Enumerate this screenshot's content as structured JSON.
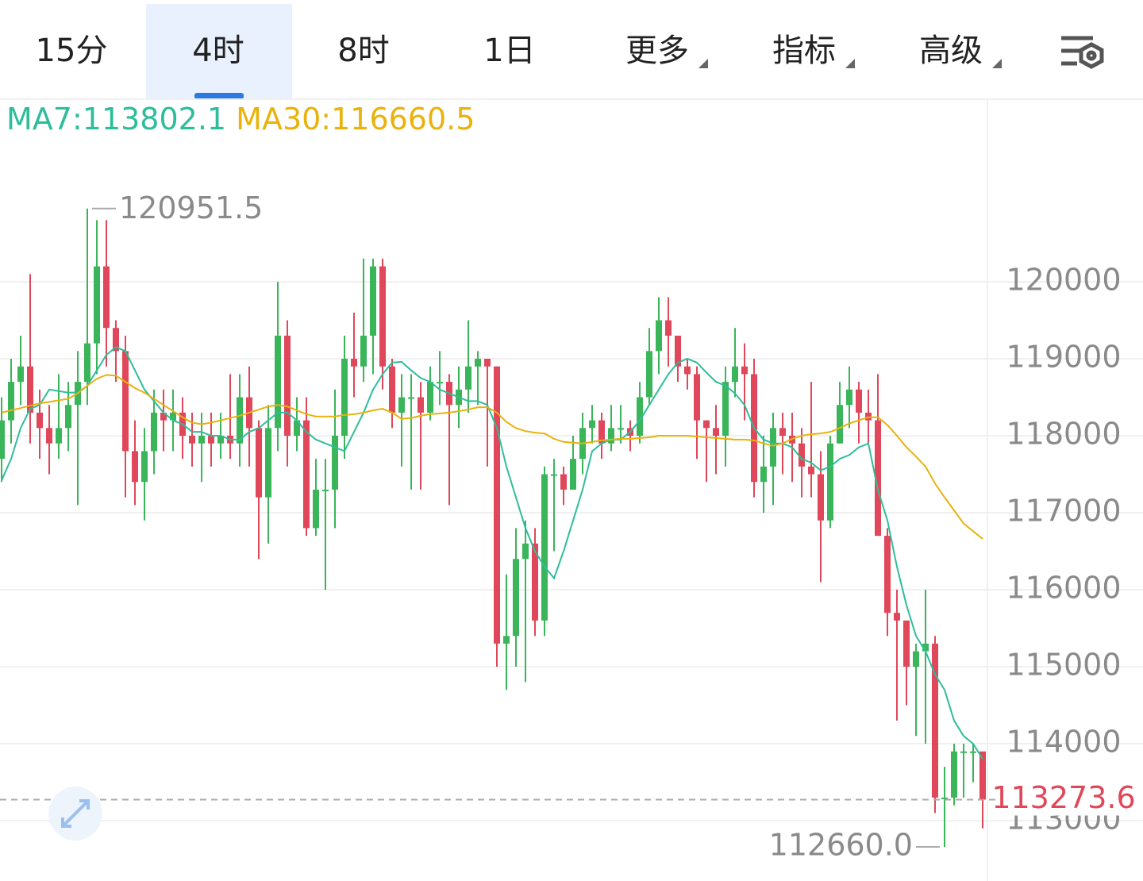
{
  "tabs": [
    "15分",
    "4时",
    "8时",
    "1日",
    "更多",
    "指标",
    "高级"
  ],
  "active_tab": 1,
  "chart_data": {
    "type": "candlestick",
    "up_color": "#3ab55a",
    "down_color": "#e0475a",
    "ylim": [
      112320,
      122371
    ],
    "yticks": [
      113000,
      114000,
      115000,
      116000,
      117000,
      118000,
      119000,
      120000
    ],
    "grid": true,
    "high_label": "120951.5",
    "low_label": "112660.0",
    "last_price": 113273.6,
    "open": [
      117700,
      118200,
      118700,
      118900,
      118300,
      118100,
      117900,
      118100,
      118400,
      118700,
      119200,
      120200,
      119400,
      119100,
      117800,
      117400,
      117800,
      118300,
      118200,
      118300,
      118000,
      117900,
      118000,
      117900,
      118000,
      117900,
      118500,
      118100,
      117200,
      118100,
      119300,
      118000,
      118200,
      116800,
      117300,
      117300,
      118000,
      119000,
      118900,
      119300,
      120200,
      118900,
      118300,
      118500,
      118500,
      118300,
      118700,
      118700,
      118400,
      118600,
      118900,
      119000,
      118900,
      115300,
      115400,
      116400,
      116600,
      115600,
      117500,
      117500,
      117300,
      117700,
      118100,
      118200,
      117900,
      118100,
      118100,
      118000,
      118500,
      119100,
      119500,
      119300,
      118900,
      118800,
      118200,
      118100,
      118000,
      118700,
      118900,
      118800,
      117400,
      117600,
      118100,
      118000,
      117900,
      117600,
      117500,
      116900,
      117900,
      118400,
      118600,
      118300,
      118200,
      116700,
      115700,
      115600,
      115000,
      115200,
      115300,
      113300,
      113300,
      113900,
      113900,
      113900
    ],
    "high": [
      118500,
      119000,
      119300,
      120100,
      118600,
      118400,
      118800,
      118700,
      119100,
      120951.5,
      120800,
      120800,
      119500,
      119300,
      118200,
      118100,
      118600,
      118600,
      118600,
      118500,
      118300,
      118300,
      118300,
      118300,
      118800,
      118800,
      118900,
      118200,
      118400,
      120000,
      119500,
      118500,
      118500,
      117700,
      117700,
      118600,
      119300,
      119600,
      120300,
      120300,
      120300,
      119000,
      118800,
      118800,
      118700,
      118900,
      119100,
      118800,
      118900,
      119500,
      119100,
      119000,
      118900,
      116200,
      116800,
      116900,
      116800,
      117600,
      117700,
      117600,
      118000,
      118300,
      118400,
      118300,
      118400,
      118400,
      118200,
      118700,
      119400,
      119800,
      119800,
      119300,
      119000,
      118900,
      118200,
      118400,
      118900,
      119400,
      119200,
      119000,
      118000,
      118300,
      118300,
      118300,
      118100,
      118700,
      117800,
      118000,
      118700,
      118900,
      118700,
      118600,
      118800,
      116800,
      116000,
      115600,
      115300,
      116000,
      115400,
      113700,
      114000,
      114000,
      114000,
      113800
    ],
    "low": [
      117400,
      117900,
      118400,
      117900,
      117700,
      117500,
      117700,
      117800,
      117100,
      118400,
      118800,
      118900,
      118700,
      117200,
      117100,
      116900,
      117500,
      117800,
      117800,
      117700,
      117600,
      117400,
      117600,
      117700,
      117700,
      117600,
      117600,
      116400,
      116600,
      117800,
      117600,
      117800,
      116700,
      116700,
      116000,
      116800,
      117700,
      118500,
      118700,
      118800,
      118600,
      118100,
      117600,
      117300,
      117300,
      118200,
      118400,
      117100,
      118100,
      118300,
      118400,
      117600,
      115000,
      114700,
      115000,
      114800,
      115400,
      115400,
      116500,
      117100,
      117300,
      117500,
      117900,
      117700,
      117800,
      117900,
      117800,
      117900,
      118400,
      118800,
      118900,
      118700,
      118600,
      117700,
      117400,
      117500,
      117600,
      118500,
      118200,
      117200,
      117000,
      117100,
      117500,
      117400,
      117200,
      117200,
      116100,
      116800,
      117900,
      118100,
      117900,
      117900,
      116700,
      115400,
      114300,
      114500,
      114100,
      114000,
      113100,
      112660.0,
      113200,
      113300,
      113500,
      112900
    ],
    "close": [
      118200,
      118700,
      118900,
      118300,
      118100,
      117900,
      118100,
      118400,
      118700,
      119200,
      120200,
      119400,
      119100,
      117800,
      117400,
      117800,
      118300,
      118200,
      118300,
      118000,
      117900,
      118000,
      117900,
      118000,
      117900,
      118500,
      118100,
      117200,
      118100,
      119300,
      118000,
      118200,
      116800,
      117300,
      117300,
      118000,
      119000,
      118900,
      119300,
      120200,
      118900,
      118300,
      118500,
      118500,
      118300,
      118700,
      118700,
      118400,
      118600,
      118900,
      119000,
      118900,
      115300,
      115400,
      116400,
      116600,
      115600,
      117500,
      117500,
      117300,
      117700,
      118100,
      118200,
      117900,
      118100,
      118100,
      118000,
      118500,
      119100,
      119500,
      119300,
      118900,
      118800,
      118200,
      118100,
      118000,
      118700,
      118900,
      118800,
      117400,
      117600,
      118100,
      118000,
      117900,
      117600,
      117500,
      116900,
      117900,
      118400,
      118600,
      118300,
      118200,
      116700,
      115700,
      115600,
      115000,
      115200,
      115300,
      113300,
      113300,
      113900,
      113900,
      113900,
      113273.6
    ],
    "series": [
      {
        "name": "MA7:113802.1",
        "color": "#2ebd9a",
        "values": [
          117420,
          117700,
          118100,
          118350,
          118400,
          118600,
          118580,
          118560,
          118560,
          118650,
          118850,
          119050,
          119150,
          119100,
          118850,
          118600,
          118450,
          118300,
          118200,
          118150,
          118050,
          118050,
          118000,
          118000,
          117950,
          117950,
          118050,
          118100,
          118200,
          118300,
          118300,
          118200,
          118050,
          117950,
          117900,
          117850,
          117800,
          118050,
          118300,
          118600,
          118800,
          118950,
          118960,
          118850,
          118750,
          118700,
          118600,
          118550,
          118500,
          118450,
          118450,
          118400,
          118100,
          117600,
          117200,
          116800,
          116500,
          116300,
          116150,
          116500,
          116900,
          117300,
          117800,
          117900,
          117950,
          117950,
          118050,
          118200,
          118400,
          118600,
          118800,
          118950,
          119000,
          118950,
          118820,
          118700,
          118650,
          118550,
          118400,
          118100,
          117950,
          117900,
          117900,
          117850,
          117700,
          117650,
          117550,
          117600,
          117700,
          117750,
          117850,
          117900,
          117300,
          116900,
          116300,
          115800,
          115400,
          115200,
          114900,
          114700,
          114300,
          114100,
          114000,
          113802.1
        ]
      },
      {
        "name": "MA30:116660.5",
        "color": "#e9b20c",
        "values": [
          118300,
          118330,
          118360,
          118390,
          118420,
          118440,
          118460,
          118480,
          118550,
          118650,
          118740,
          118790,
          118780,
          118700,
          118620,
          118560,
          118480,
          118400,
          118320,
          118240,
          118170,
          118150,
          118170,
          118200,
          118230,
          118260,
          118300,
          118340,
          118380,
          118400,
          118380,
          118330,
          118280,
          118250,
          118250,
          118250,
          118270,
          118280,
          118300,
          118330,
          118350,
          118300,
          118220,
          118230,
          118260,
          118280,
          118290,
          118300,
          118320,
          118340,
          118370,
          118370,
          118300,
          118180,
          118100,
          118060,
          118040,
          118030,
          117960,
          117920,
          117910,
          117900,
          117920,
          117940,
          117950,
          117960,
          117960,
          117970,
          117980,
          118000,
          118000,
          118000,
          118000,
          117990,
          117980,
          117970,
          117960,
          117950,
          117950,
          117940,
          117900,
          117870,
          117900,
          117960,
          118000,
          118020,
          118030,
          118050,
          118100,
          118160,
          118200,
          118240,
          118240,
          118140,
          118000,
          117850,
          117730,
          117600,
          117380,
          117200,
          117030,
          116860,
          116760,
          116660.5
        ]
      }
    ]
  }
}
